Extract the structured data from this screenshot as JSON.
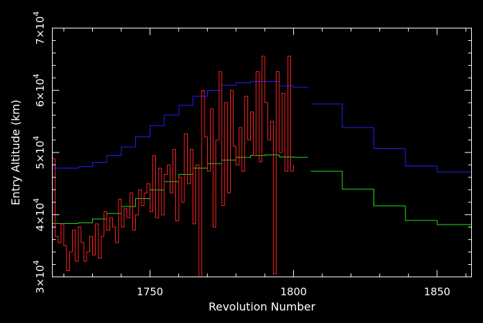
{
  "chart_data": {
    "type": "line",
    "title": "",
    "xlabel": "Revolution Number",
    "ylabel": "Entry Altitude (km)",
    "xlim": [
      1716,
      1862
    ],
    "ylim": [
      30000,
      70000
    ],
    "x_ticks": [
      {
        "value": 1750,
        "label": "1750"
      },
      {
        "value": 1800,
        "label": "1800"
      },
      {
        "value": 1850,
        "label": "1850"
      }
    ],
    "y_ticks": [
      {
        "value": 30000,
        "mantissa": "3",
        "exp": "4"
      },
      {
        "value": 40000,
        "mantissa": "4",
        "exp": "4"
      },
      {
        "value": 50000,
        "mantissa": "5",
        "exp": "4"
      },
      {
        "value": 60000,
        "mantissa": "6",
        "exp": "4"
      },
      {
        "value": 70000,
        "mantissa": "7",
        "exp": "4"
      }
    ],
    "grid": false,
    "legend": false,
    "background": "#000000",
    "series": [
      {
        "color": "#2020ff",
        "style": "step",
        "x": [
          1716,
          1720,
          1725,
          1730,
          1735,
          1740,
          1745,
          1750,
          1755,
          1760,
          1765,
          1770,
          1775,
          1780,
          1785,
          1790,
          1795,
          1800,
          1805
        ],
        "y": [
          47500,
          47500,
          47700,
          48400,
          49500,
          50900,
          52500,
          54300,
          56000,
          57600,
          59000,
          60000,
          60800,
          61200,
          61400,
          61400,
          60700,
          60500,
          60500
        ]
      },
      {
        "color": "#2020ff",
        "style": "step",
        "x": [
          1806,
          1817,
          1817,
          1828,
          1828,
          1839,
          1839,
          1850,
          1850,
          1862
        ],
        "y": [
          57800,
          57800,
          54000,
          54000,
          50600,
          50600,
          47800,
          47800,
          46900,
          46900
        ]
      },
      {
        "color": "#20e020",
        "style": "step",
        "x": [
          1716,
          1720,
          1725,
          1730,
          1735,
          1740,
          1745,
          1750,
          1755,
          1760,
          1765,
          1770,
          1775,
          1780,
          1785,
          1790,
          1795,
          1800,
          1805
        ],
        "y": [
          38600,
          38600,
          38700,
          39300,
          40200,
          41300,
          42600,
          44000,
          45300,
          46500,
          47500,
          48200,
          48800,
          49200,
          49500,
          49600,
          49300,
          49200,
          49200
        ]
      },
      {
        "color": "#20e020",
        "style": "step",
        "x": [
          1806,
          1817,
          1817,
          1828,
          1828,
          1839,
          1839,
          1850,
          1850,
          1862
        ],
        "y": [
          47000,
          47000,
          44100,
          44100,
          41400,
          41400,
          39100,
          39100,
          38400,
          38400
        ]
      },
      {
        "color": "#ff2020",
        "style": "step",
        "x": [
          1716,
          1717,
          1718,
          1719,
          1720,
          1721,
          1722,
          1723,
          1724,
          1725,
          1726,
          1727,
          1728,
          1729,
          1730,
          1731,
          1732,
          1733,
          1734,
          1735,
          1736,
          1737,
          1738,
          1739,
          1740,
          1741,
          1742,
          1743,
          1744,
          1745,
          1746,
          1747,
          1748,
          1749,
          1750,
          1751,
          1752,
          1753,
          1754,
          1755,
          1756,
          1757,
          1758,
          1759,
          1760,
          1761,
          1762,
          1763,
          1764,
          1765,
          1766,
          1767,
          1768,
          1769,
          1770,
          1771,
          1772,
          1773,
          1774,
          1775,
          1776,
          1777,
          1778,
          1779,
          1780,
          1781,
          1782,
          1783,
          1784,
          1785,
          1786,
          1787,
          1788,
          1789,
          1790,
          1791,
          1792,
          1793,
          1794,
          1795,
          1796,
          1797,
          1798,
          1799,
          1800
        ],
        "y": [
          49000,
          36500,
          35500,
          38500,
          35000,
          31000,
          34000,
          37500,
          32500,
          38000,
          35500,
          32500,
          34000,
          36500,
          33500,
          38500,
          33000,
          36500,
          40500,
          37500,
          39500,
          38000,
          35500,
          42500,
          38000,
          41000,
          39500,
          43500,
          37500,
          40000,
          44000,
          41500,
          43500,
          45000,
          40500,
          49500,
          39500,
          47500,
          40000,
          46500,
          48000,
          43500,
          50500,
          39000,
          46000,
          42000,
          53000,
          45000,
          50500,
          38500,
          48000,
          30000,
          60000,
          52500,
          47000,
          57000,
          38000,
          52000,
          63000,
          41500,
          58000,
          43500,
          60000,
          51000,
          48000,
          54000,
          47000,
          59000,
          52000,
          56500,
          49500,
          63000,
          48500,
          65500,
          58000,
          52000,
          55000,
          30500,
          63000,
          50000,
          59500,
          47000,
          65500,
          47000,
          48000
        ]
      }
    ]
  }
}
